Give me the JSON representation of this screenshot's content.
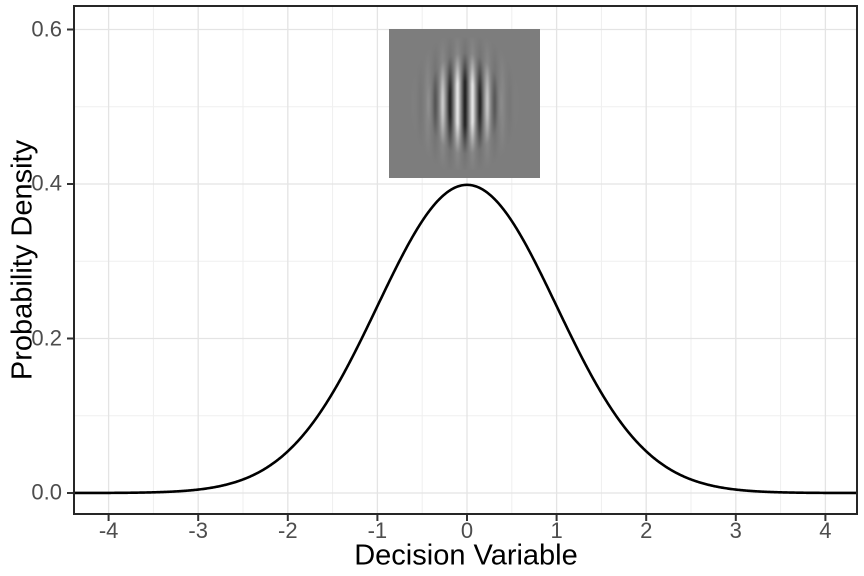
{
  "chart_data": {
    "type": "line",
    "title": "",
    "xlabel": "Decision Variable",
    "ylabel": "Probability Density",
    "x_ticks": [
      -4,
      -3,
      -2,
      -1,
      0,
      1,
      2,
      3,
      4
    ],
    "x_tick_labels": [
      "-4",
      "-3",
      "-2",
      "-1",
      "0",
      "1",
      "2",
      "3",
      "4"
    ],
    "y_ticks": [
      0,
      0.2,
      0.4,
      0.6
    ],
    "y_tick_labels": [
      "0.0",
      "0.2",
      "0.4",
      "0.6"
    ],
    "x_minor_ticks": [
      -3.5,
      -2.5,
      -1.5,
      -0.5,
      0.5,
      1.5,
      2.5,
      3.5
    ],
    "y_minor_ticks": [
      0.1,
      0.3,
      0.5
    ],
    "xlim": [
      -4.39,
      4.35
    ],
    "ylim": [
      -0.027,
      0.63
    ],
    "grid": "major+minor",
    "legend": "none",
    "series": [
      {
        "name": "standard normal probability density",
        "curve": "gaussian",
        "mean": 0,
        "sd": 1,
        "peak_density": 0.3989,
        "x_range": [
          -4.39,
          4.35
        ],
        "points": [
          {
            "x": -4,
            "y": 0.0001
          },
          {
            "x": -3,
            "y": 0.0044
          },
          {
            "x": -2,
            "y": 0.054
          },
          {
            "x": -1,
            "y": 0.242
          },
          {
            "x": 0,
            "y": 0.3989
          },
          {
            "x": 1,
            "y": 0.242
          },
          {
            "x": 2,
            "y": 0.054
          },
          {
            "x": 3,
            "y": 0.0044
          },
          {
            "x": 4,
            "y": 0.0001
          }
        ]
      }
    ],
    "annotations": [
      {
        "name": "gabor-patch",
        "type": "inset-image",
        "description": "vertical Gabor grating (sinusoidal luminance stripes in a Gaussian envelope) on a mid-gray square",
        "x_range": [
          -0.87,
          0.81
        ],
        "y_range": [
          0.408,
          0.601
        ]
      }
    ]
  },
  "style": {
    "background": "#ffffff",
    "panel_border": "#262626",
    "grid_major": "#e4e4e4",
    "grid_minor": "#efefef",
    "curve_color": "#000000",
    "tick_color": "#333333",
    "tick_label_color": "#4d4d4d",
    "axis_title_color": "#000000",
    "gabor_gray": "#7d7d7d"
  }
}
